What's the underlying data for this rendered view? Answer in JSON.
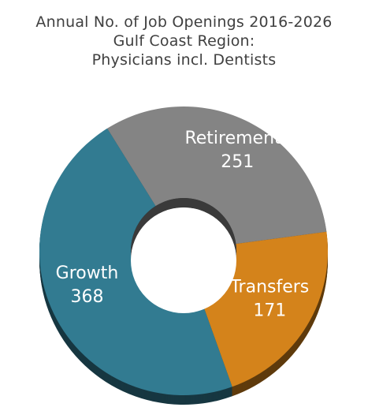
{
  "title_lines": [
    "Annual No. of Job Openings 2016-2026",
    "Gulf Coast Region:",
    "Physicians incl. Dentists"
  ],
  "chart_data": {
    "type": "pie",
    "donut": true,
    "title": "Annual No. of Job Openings 2016-2026 Gulf Coast Region: Physicians incl. Dentists",
    "categories": [
      "Retirements",
      "Transfers",
      "Growth"
    ],
    "values": [
      251,
      171,
      368
    ],
    "colors": [
      "#848484",
      "#d4831b",
      "#327b91"
    ],
    "legend": "none",
    "data_labels": [
      "251",
      "171",
      "368"
    ]
  }
}
